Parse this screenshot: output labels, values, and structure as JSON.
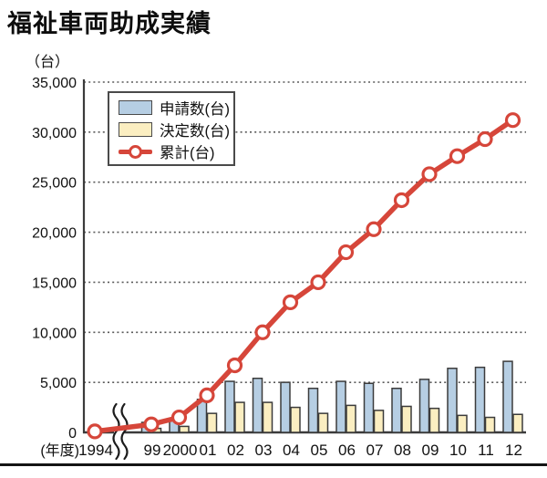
{
  "header": {
    "title": "福祉車両助成実績"
  },
  "chart": {
    "unit_label": "（台）",
    "x_axis_prefix": "(年度)",
    "legend": [
      {
        "label": "申請数(台)",
        "type": "bar",
        "color": "#b6cee3"
      },
      {
        "label": "決定数(台)",
        "type": "bar",
        "color": "#fbeec1"
      },
      {
        "label": "累計(台)",
        "type": "line",
        "color": "#d6463a"
      }
    ]
  },
  "chart_data": {
    "type": "bar",
    "subtype": "grouped bars with cumulative line overlay",
    "title": "福祉車両助成実績",
    "unit": "台",
    "xlabel": "(年度)",
    "ylabel": "（台）",
    "categories": [
      "1994",
      "99",
      "2000",
      "01",
      "02",
      "03",
      "04",
      "05",
      "06",
      "07",
      "08",
      "09",
      "10",
      "11",
      "12"
    ],
    "series": [
      {
        "name": "申請数(台)",
        "type": "bar",
        "color": "#b6cee3",
        "values": [
          0,
          1000,
          1300,
          3300,
          5100,
          5400,
          5000,
          4400,
          5100,
          4900,
          4400,
          5300,
          6400,
          6500,
          7100
        ]
      },
      {
        "name": "決定数(台)",
        "type": "bar",
        "color": "#fbeec1",
        "values": [
          0,
          400,
          600,
          1900,
          3000,
          3000,
          2500,
          1900,
          2700,
          2200,
          2600,
          2400,
          1700,
          1500,
          1800
        ]
      },
      {
        "name": "累計(台)",
        "type": "line",
        "color": "#d6463a",
        "marker": "open-circle",
        "values": [
          100,
          800,
          1500,
          3700,
          6700,
          10000,
          13000,
          15000,
          18000,
          20300,
          23200,
          25800,
          27600,
          29300,
          31200
        ]
      }
    ],
    "ylim": [
      0,
      35000
    ],
    "yticks": [
      0,
      5000,
      10000,
      15000,
      20000,
      25000,
      30000,
      35000
    ],
    "grid": "dotted horizontal gridlines at every 5,000",
    "legend_position": "inside top-left",
    "x_axis_break": "squiggle break between 1994 and 99",
    "colors": {
      "axis": "#3b3b3b",
      "gridline": "#5a5a5a",
      "bar_outline": "#3b3b3b"
    }
  }
}
